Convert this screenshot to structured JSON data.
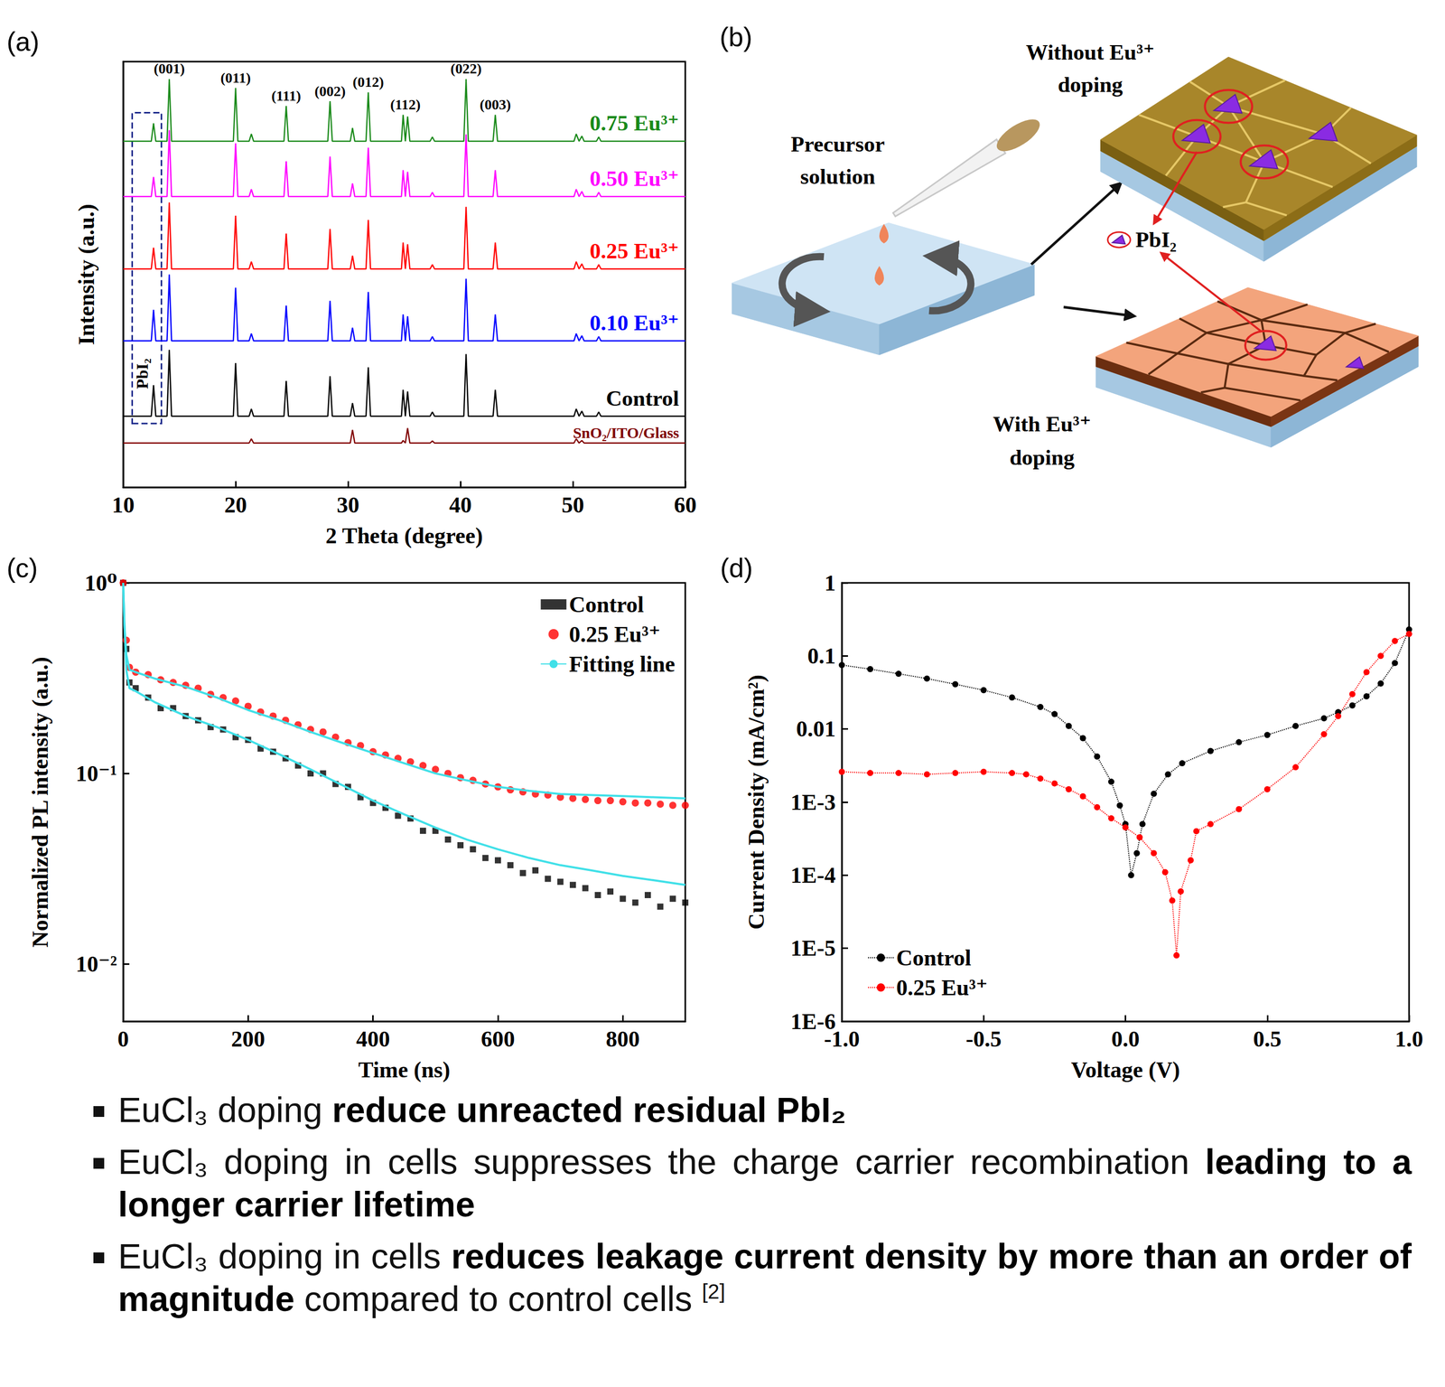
{
  "chart_data": [
    {
      "type": "line",
      "title": "(a)",
      "x_label": "2 Theta (degree)",
      "y_label": "Intensity (a.u.)",
      "xlim": [
        10,
        60
      ],
      "xticks": [
        10,
        20,
        30,
        40,
        50,
        60
      ],
      "ylim": [
        0,
        100
      ],
      "tick_labels": "x",
      "grid": false,
      "annotations": [
        {
          "text": "(001)",
          "x": 14.1
        },
        {
          "text": "(011)",
          "x": 20.0
        },
        {
          "text": "(111)",
          "x": 24.5
        },
        {
          "text": "(002)",
          "x": 28.4
        },
        {
          "text": "(012)",
          "x": 31.8
        },
        {
          "text": "(112)",
          "x": 35.1
        },
        {
          "text": "(022)",
          "x": 40.5
        },
        {
          "text": "(003)",
          "x": 43.1
        }
      ],
      "box": {
        "label": "PbI₂",
        "xlim": [
          10.8,
          13.4
        ],
        "ylim": [
          15,
          88
        ]
      },
      "x": [
        10,
        12.5,
        12.7,
        12.9,
        13.9,
        14.1,
        14.3,
        19.8,
        20.0,
        20.2,
        21.2,
        21.4,
        21.6,
        24.3,
        24.5,
        24.7,
        28.2,
        28.4,
        28.6,
        30.2,
        30.4,
        30.6,
        31.6,
        31.8,
        32.0,
        34.75,
        34.9,
        35.1,
        35.3,
        35.5,
        37.3,
        37.5,
        37.7,
        40.3,
        40.5,
        40.7,
        42.9,
        43.1,
        43.3,
        50.1,
        50.3,
        50.55,
        50.8,
        51.0,
        52.1,
        52.3,
        52.5,
        60
      ],
      "series": [
        {
          "name": "0.75 Eu³⁺",
          "color": "#1a8a1a",
          "values": [
            81.3,
            81.3,
            85.5,
            81.3,
            81.3,
            95.9,
            81.3,
            81.3,
            93.8,
            81.3,
            81.3,
            83.0,
            81.3,
            81.3,
            89.6,
            81.3,
            81.3,
            90.7,
            81.3,
            81.3,
            84.4,
            81.3,
            81.3,
            92.8,
            81.3,
            81.3,
            87.5,
            81.3,
            87.1,
            81.3,
            81.3,
            82.3,
            81.3,
            81.3,
            95.9,
            81.3,
            81.3,
            87.5,
            81.3,
            81.3,
            83.0,
            81.3,
            82.5,
            81.3,
            81.3,
            82.3,
            81.3,
            81.3
          ]
        },
        {
          "name": "0.50 Eu³⁺",
          "color": "#ff00ff",
          "values": [
            68.3,
            68.3,
            72.9,
            68.3,
            68.3,
            83.9,
            68.3,
            68.3,
            80.8,
            68.3,
            68.3,
            70.0,
            68.3,
            68.3,
            76.6,
            68.3,
            68.3,
            77.7,
            68.3,
            68.3,
            71.4,
            68.3,
            68.3,
            79.8,
            68.3,
            68.3,
            74.5,
            68.3,
            74.1,
            68.3,
            68.3,
            69.3,
            68.3,
            68.3,
            82.9,
            68.3,
            68.3,
            74.5,
            68.3,
            68.3,
            70.0,
            68.3,
            69.5,
            68.3,
            68.3,
            69.3,
            68.3,
            68.3
          ]
        },
        {
          "name": "0.25 Eu³⁺",
          "color": "#ff0000",
          "values": [
            51.3,
            51.3,
            56.3,
            51.3,
            51.3,
            66.9,
            51.3,
            51.3,
            63.8,
            51.3,
            51.3,
            53.0,
            51.3,
            51.3,
            59.6,
            51.3,
            51.3,
            60.7,
            51.3,
            51.3,
            54.4,
            51.3,
            51.3,
            62.8,
            51.3,
            51.3,
            57.5,
            51.3,
            57.1,
            51.3,
            51.3,
            52.3,
            51.3,
            51.3,
            65.9,
            51.3,
            51.3,
            57.5,
            51.3,
            51.3,
            53.0,
            51.3,
            52.5,
            51.3,
            51.3,
            52.3,
            51.3,
            51.3
          ]
        },
        {
          "name": "0.10 Eu³⁺",
          "color": "#0000ff",
          "values": [
            34.4,
            34.4,
            41.7,
            34.4,
            34.4,
            50.0,
            34.4,
            34.4,
            46.9,
            34.4,
            34.4,
            36.1,
            34.4,
            34.4,
            42.7,
            34.4,
            34.4,
            43.8,
            34.4,
            34.4,
            37.5,
            34.4,
            34.4,
            45.9,
            34.4,
            34.4,
            40.6,
            34.4,
            40.2,
            34.4,
            34.4,
            35.4,
            34.4,
            34.4,
            49.0,
            34.4,
            34.4,
            40.6,
            34.4,
            34.4,
            36.1,
            34.4,
            35.6,
            34.4,
            34.4,
            35.4,
            34.4,
            34.4
          ]
        },
        {
          "name": "Control",
          "color": "#000000",
          "values": [
            16.7,
            16.7,
            24.0,
            16.7,
            16.7,
            32.3,
            16.7,
            16.7,
            29.2,
            16.7,
            16.7,
            18.4,
            16.7,
            16.7,
            25.0,
            16.7,
            16.7,
            26.1,
            16.7,
            16.7,
            19.8,
            16.7,
            16.7,
            28.2,
            16.7,
            16.7,
            22.9,
            16.7,
            22.5,
            16.7,
            16.7,
            17.7,
            16.7,
            16.7,
            31.3,
            16.7,
            16.7,
            22.9,
            16.7,
            16.7,
            18.4,
            16.7,
            17.9,
            16.7,
            16.7,
            17.7,
            16.7,
            16.7
          ]
        },
        {
          "name": "SnO₂/ITO/Glass",
          "color": "#800000",
          "values": [
            10.4,
            10.4,
            10.4,
            10.4,
            10.4,
            10.4,
            10.4,
            10.4,
            10.4,
            10.4,
            10.4,
            11.4,
            10.4,
            10.4,
            10.4,
            10.4,
            10.4,
            10.4,
            10.4,
            10.4,
            13.5,
            10.4,
            10.4,
            10.4,
            10.4,
            10.4,
            11.0,
            10.4,
            13.9,
            10.4,
            10.4,
            10.9,
            10.4,
            10.4,
            10.4,
            10.4,
            10.4,
            10.4,
            10.4,
            10.4,
            11.4,
            10.4,
            11.0,
            10.4,
            10.4,
            10.4,
            10.4,
            10.4
          ]
        }
      ]
    },
    {
      "type": "scatter",
      "title": "(c)",
      "x_label": "Time (ns)",
      "y_label": "Normalized PL intensity (a.u.)",
      "log": "y",
      "xlim": [
        0,
        900
      ],
      "xticks": [
        0,
        200,
        400,
        600,
        800
      ],
      "ylim": [
        0.005,
        1
      ],
      "yticks": [
        {
          "value": 0.01,
          "label": "10⁻²"
        },
        {
          "value": 0.1,
          "label": "10⁻¹"
        },
        {
          "value": 1,
          "label": "10⁰"
        }
      ],
      "legend": "upper right",
      "grid": false,
      "series": [
        {
          "name": "Control",
          "type": "scatter",
          "marker": "square",
          "color": "#000000",
          "x": [
            0,
            5,
            10,
            20,
            40,
            60,
            80,
            100,
            120,
            140,
            160,
            180,
            200,
            220,
            240,
            260,
            280,
            300,
            320,
            340,
            360,
            380,
            400,
            420,
            440,
            460,
            480,
            500,
            520,
            540,
            560,
            580,
            600,
            620,
            640,
            660,
            680,
            700,
            720,
            740,
            760,
            780,
            800,
            820,
            840,
            860,
            880,
            900
          ],
          "values": [
            1,
            0.45,
            0.3,
            0.28,
            0.25,
            0.22,
            0.22,
            0.2,
            0.19,
            0.175,
            0.17,
            0.155,
            0.15,
            0.135,
            0.13,
            0.12,
            0.11,
            0.1,
            0.1,
            0.088,
            0.085,
            0.075,
            0.07,
            0.066,
            0.06,
            0.058,
            0.05,
            0.05,
            0.045,
            0.042,
            0.04,
            0.036,
            0.035,
            0.033,
            0.03,
            0.031,
            0.028,
            0.027,
            0.026,
            0.025,
            0.023,
            0.024,
            0.022,
            0.021,
            0.023,
            0.02,
            0.022,
            0.021
          ]
        },
        {
          "name": "0.25 Eu³⁺",
          "type": "scatter",
          "marker": "circle",
          "color": "#ff0000",
          "x": [
            0,
            5,
            10,
            20,
            40,
            60,
            80,
            100,
            120,
            140,
            160,
            180,
            200,
            220,
            240,
            260,
            280,
            300,
            320,
            340,
            360,
            380,
            400,
            420,
            440,
            460,
            480,
            500,
            520,
            540,
            560,
            580,
            600,
            620,
            640,
            660,
            680,
            700,
            720,
            740,
            760,
            780,
            800,
            820,
            840,
            860,
            880,
            900
          ],
          "values": [
            1,
            0.5,
            0.36,
            0.34,
            0.33,
            0.31,
            0.3,
            0.29,
            0.28,
            0.26,
            0.25,
            0.24,
            0.225,
            0.21,
            0.2,
            0.19,
            0.18,
            0.17,
            0.165,
            0.155,
            0.145,
            0.14,
            0.13,
            0.125,
            0.12,
            0.115,
            0.11,
            0.105,
            0.1,
            0.095,
            0.092,
            0.088,
            0.085,
            0.082,
            0.08,
            0.078,
            0.077,
            0.075,
            0.074,
            0.073,
            0.072,
            0.072,
            0.071,
            0.07,
            0.07,
            0.069,
            0.068,
            0.068
          ]
        },
        {
          "name": "Fitting line",
          "type": "line",
          "color": "#40e0e8",
          "x": [
            0,
            2,
            5,
            10,
            20,
            50,
            100,
            150,
            200,
            250,
            300,
            350,
            400,
            450,
            500,
            550,
            600,
            650,
            700,
            750,
            800,
            850,
            900
          ],
          "values": [
            1,
            0.6,
            0.35,
            0.28,
            0.27,
            0.237,
            0.2,
            0.175,
            0.15,
            0.126,
            0.105,
            0.087,
            0.072,
            0.061,
            0.052,
            0.045,
            0.04,
            0.036,
            0.033,
            0.031,
            0.029,
            0.0275,
            0.026
          ]
        },
        {
          "name": "Fitting line",
          "type": "line",
          "color": "#40e0e8",
          "x": [
            0,
            2,
            5,
            10,
            20,
            50,
            100,
            150,
            200,
            250,
            300,
            350,
            400,
            450,
            500,
            550,
            600,
            650,
            700,
            750,
            800,
            850,
            900
          ],
          "values": [
            1,
            0.6,
            0.42,
            0.35,
            0.34,
            0.315,
            0.285,
            0.25,
            0.215,
            0.19,
            0.165,
            0.145,
            0.128,
            0.113,
            0.1,
            0.092,
            0.085,
            0.081,
            0.078,
            0.077,
            0.076,
            0.075,
            0.074
          ]
        }
      ]
    },
    {
      "type": "line",
      "title": "(d)",
      "x_label": "Voltage (V)",
      "y_label": "Current Density (mA/cm²)",
      "log": "y",
      "xlim": [
        -1,
        1
      ],
      "xticks": [
        {
          "value": -1,
          "label": "-1.0"
        },
        -0.5,
        {
          "value": 0,
          "label": "0.0"
        },
        0.5,
        {
          "value": 1,
          "label": "1.0"
        }
      ],
      "ylim": [
        1e-06,
        1
      ],
      "yticks": [
        {
          "value": 1e-06,
          "label": "1E-6"
        },
        {
          "value": 1e-05,
          "label": "1E-5"
        },
        {
          "value": 0.0001,
          "label": "1E-4"
        },
        {
          "value": 0.001,
          "label": "1E-3"
        },
        0.01,
        0.1,
        1
      ],
      "legend": "lower left",
      "grid": false,
      "series": [
        {
          "name": "Control",
          "color": "#000000",
          "marker": "circle",
          "line_style": "dotted",
          "x": [
            -1,
            -0.9,
            -0.8,
            -0.7,
            -0.6,
            -0.5,
            -0.4,
            -0.3,
            -0.25,
            -0.2,
            -0.15,
            -0.1,
            -0.05,
            -0.02,
            0,
            0.02,
            0.04,
            0.06,
            0.1,
            0.15,
            0.2,
            0.3,
            0.4,
            0.5,
            0.6,
            0.7,
            0.75,
            0.8,
            0.85,
            0.9,
            0.95,
            1
          ],
          "values": [
            0.075,
            0.066,
            0.057,
            0.049,
            0.041,
            0.034,
            0.027,
            0.02,
            0.016,
            0.011,
            0.0075,
            0.0042,
            0.0019,
            0.0009,
            0.0005,
            0.0001,
            0.0002,
            0.0005,
            0.0013,
            0.0024,
            0.0034,
            0.005,
            0.0066,
            0.0083,
            0.011,
            0.014,
            0.017,
            0.021,
            0.028,
            0.042,
            0.08,
            0.23
          ]
        },
        {
          "name": "0.25 Eu³⁺",
          "color": "#ff0000",
          "marker": "circle",
          "line_style": "dotted",
          "x": [
            -1,
            -0.9,
            -0.8,
            -0.7,
            -0.6,
            -0.5,
            -0.4,
            -0.35,
            -0.3,
            -0.25,
            -0.2,
            -0.15,
            -0.1,
            -0.05,
            0,
            0.05,
            0.1,
            0.14,
            0.165,
            0.18,
            0.195,
            0.23,
            0.25,
            0.3,
            0.4,
            0.5,
            0.6,
            0.7,
            0.75,
            0.8,
            0.85,
            0.9,
            0.95,
            1
          ],
          "values": [
            0.0026,
            0.0025,
            0.0025,
            0.0024,
            0.0025,
            0.0026,
            0.0025,
            0.0024,
            0.0021,
            0.0018,
            0.0015,
            0.0012,
            0.00085,
            0.0006,
            0.00045,
            0.00033,
            0.0002,
            0.00011,
            4.5e-05,
            8e-06,
            6e-05,
            0.00016,
            0.0004,
            0.0005,
            0.0008,
            0.0015,
            0.003,
            0.0085,
            0.015,
            0.03,
            0.06,
            0.1,
            0.16,
            0.2
          ]
        }
      ]
    }
  ],
  "diagram": {
    "label": "(b)",
    "precursor": "Precursor solution",
    "without": "Without Eu³⁺ doping",
    "with": "With Eu³⁺ doping",
    "pbi2": "PbI₂"
  },
  "bullets": [
    [
      {
        "text": "EuCl₃ doping "
      },
      {
        "text": "reduce unreacted residual PbI₂",
        "bold": true
      }
    ],
    [
      {
        "text": "EuCl₃ doping in cells suppresses the charge carrier recombination "
      },
      {
        "text": "leading to a longer carrier lifetime",
        "bold": true
      }
    ],
    [
      {
        "text": "EuCl₃ doping in cells "
      },
      {
        "text": "reduces leakage current density by more than an order of magnitude",
        "bold": true
      },
      {
        "text": " compared to control cells "
      },
      {
        "text": "[2]",
        "sup": true
      }
    ]
  ]
}
